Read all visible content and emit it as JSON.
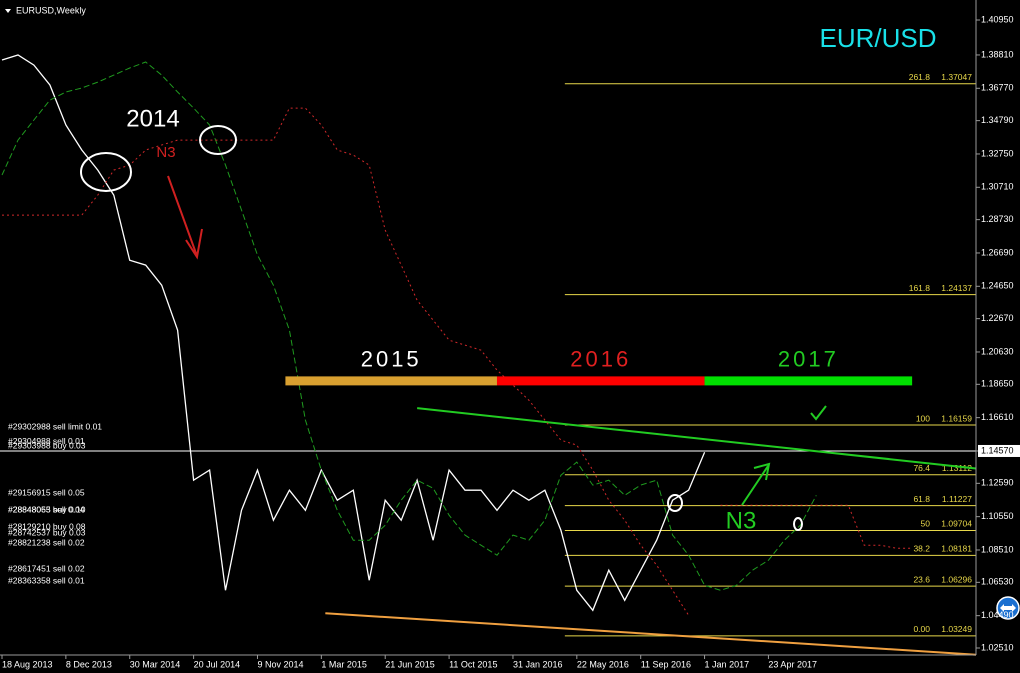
{
  "chart_data": {
    "type": "line",
    "header": "EURUSD,Weekly",
    "title": "EUR/USD",
    "annotations": [
      "2014",
      "N3",
      "N3"
    ],
    "x": [
      "18 Aug 2013",
      "15 Sep 2013",
      "13 Oct 2013",
      "10 Nov 2013",
      "8 Dec 2013",
      "5 Jan 2014",
      "2 Feb 2014",
      "2 Mar 2014",
      "30 Mar 2014",
      "27 Apr 2014",
      "25 May 2014",
      "22 Jun 2014",
      "20 Jul 2014",
      "17 Aug 2014",
      "14 Sep 2014",
      "12 Oct 2014",
      "9 Nov 2014",
      "7 Dec 2014",
      "4 Jan 2015",
      "1 Feb 2015",
      "1 Mar 2015",
      "29 Mar 2015",
      "26 Apr 2015",
      "24 May 2015",
      "21 Jun 2015",
      "19 Jul 2015",
      "16 Aug 2015",
      "13 Sep 2015",
      "11 Oct 2015",
      "8 Nov 2015",
      "6 Dec 2015",
      "3 Jan 2016",
      "31 Jan 2016",
      "28 Feb 2016",
      "27 Mar 2016",
      "24 Apr 2016",
      "22 May 2016",
      "19 Jun 2016",
      "17 Jul 2016",
      "14 Aug 2016",
      "11 Sep 2016",
      "9 Oct 2016",
      "6 Nov 2016",
      "4 Dec 2016",
      "1 Jan 2017",
      "29 Jan 2017",
      "26 Feb 2017",
      "26 Mar 2017",
      "23 Apr 2017",
      "21 May 2017",
      "18 Jun 2017",
      "16 Jul 2017",
      "13 Aug 2017",
      "10 Sep 2017",
      "8 Oct 2017",
      "5 Nov 2017",
      "3 Dec 2017",
      "31 Dec 2017"
    ],
    "series": [
      {
        "color": "#ffffff",
        "style": "solid",
        "values": [
          1.385,
          1.3881,
          1.3819,
          1.3697,
          1.3452,
          1.3299,
          1.3176,
          1.3023,
          1.2625,
          1.2595,
          1.2472,
          1.2197,
          1.1278,
          1.134,
          1.0604,
          1.1094,
          1.134,
          1.1033,
          1.1217,
          1.1094,
          1.134,
          1.1156,
          1.1217,
          1.0666,
          1.1156,
          1.1033,
          1.1278,
          1.0911,
          1.134,
          1.1217,
          1.1217,
          1.1094,
          1.1217,
          1.1156,
          1.1217,
          1.0972,
          1.0604,
          1.0482,
          1.0727,
          1.0543,
          1.0727,
          1.0911,
          1.1156,
          1.1217,
          1.1449,
          null,
          null,
          null,
          null,
          null,
          null,
          null,
          null,
          null,
          null,
          null,
          null,
          null
        ]
      },
      {
        "color": "#1f9a1f",
        "style": "dashed",
        "values": [
          1.3146,
          1.336,
          1.3483,
          1.3605,
          1.3654,
          1.3679,
          1.3715,
          1.3758,
          1.3801,
          1.3838,
          1.3758,
          1.3654,
          1.3556,
          1.3452,
          1.3207,
          1.2932,
          1.2656,
          1.2472,
          1.2197,
          1.1646,
          1.134,
          1.1094,
          1.0911,
          1.0911,
          1.1003,
          1.1156,
          1.1278,
          1.1229,
          1.1064,
          1.0942,
          1.088,
          1.0819,
          1.0942,
          1.0911,
          1.1033,
          1.1309,
          1.1389,
          1.1248,
          1.1278,
          1.1186,
          1.1248,
          1.1278,
          1.0942,
          1.0819,
          1.0635,
          1.0604,
          1.0635,
          1.0727,
          1.0788,
          1.0911,
          1.1003,
          1.1186,
          null,
          null,
          null,
          null,
          null,
          null
        ]
      },
      {
        "color": "#d0282a",
        "style": "dotted",
        "values": [
          1.2901,
          1.2901,
          1.2901,
          1.2901,
          1.2901,
          1.2901,
          1.3023,
          1.3176,
          1.3207,
          1.3299,
          1.333,
          1.336,
          1.336,
          1.336,
          1.336,
          1.336,
          1.336,
          1.336,
          1.3556,
          1.3556,
          1.3452,
          1.3299,
          1.3268,
          1.3207,
          1.2809,
          1.2595,
          1.238,
          1.2258,
          1.2135,
          1.2105,
          1.2074,
          1.1952,
          1.186,
          1.1768,
          1.1646,
          1.1523,
          1.1493,
          1.134,
          1.1156,
          1.1033,
          1.088,
          1.0758,
          1.0604,
          1.0451,
          null,
          1.1125,
          1.1125,
          1.1125,
          1.1125,
          1.1125,
          1.1125,
          1.1125,
          1.1125,
          1.1125,
          1.088,
          1.088,
          1.0862,
          1.0862
        ]
      }
    ],
    "xlim": [
      "18 Aug 2013",
      "22 Apr 2018"
    ],
    "xticks": [
      "18 Aug 2013",
      "8 Dec 2013",
      "30 Mar 2014",
      "20 Jul 2014",
      "9 Nov 2014",
      "1 Mar 2015",
      "21 Jun 2015",
      "11 Oct 2015",
      "31 Jan 2016",
      "22 May 2016",
      "11 Sep 2016",
      "1 Jan 2017",
      "23 Apr 2017"
    ],
    "ylim": [
      1.02082,
      1.42174
    ],
    "yticks": [
      {
        "value": 1.4095,
        "label": "1.40950"
      },
      {
        "value": 1.3881,
        "label": "1.38810"
      },
      {
        "value": 1.3677,
        "label": "1.36770"
      },
      {
        "value": 1.3479,
        "label": "1.34790"
      },
      {
        "value": 1.3275,
        "label": "1.32750"
      },
      {
        "value": 1.3071,
        "label": "1.30710"
      },
      {
        "value": 1.2873,
        "label": "1.28730"
      },
      {
        "value": 1.2669,
        "label": "1.26690"
      },
      {
        "value": 1.2465,
        "label": "1.24650"
      },
      {
        "value": 1.2267,
        "label": "1.22670"
      },
      {
        "value": 1.2063,
        "label": "1.20630"
      },
      {
        "value": 1.1865,
        "label": "1.18650"
      },
      {
        "value": 1.1661,
        "label": "1.16610"
      },
      {
        "value": 1.1457,
        "label": "1.14570"
      },
      {
        "value": 1.1259,
        "label": "1.12590"
      },
      {
        "value": 1.1055,
        "label": "1.10550"
      },
      {
        "value": 1.0851,
        "label": "1.08510"
      },
      {
        "value": 1.0653,
        "label": "1.06530"
      },
      {
        "value": 1.0449,
        "label": "1.04490"
      },
      {
        "value": 1.0251,
        "label": "1.02510"
      }
    ],
    "current_price": 1.1457,
    "fib_start": "1 May 2016",
    "fib_levels": [
      {
        "level": 261.8,
        "price": 1.37047
      },
      {
        "level": 161.8,
        "price": 1.24137
      },
      {
        "level": 100,
        "price": 1.16159
      },
      {
        "level": 76.4,
        "price": 1.13112
      },
      {
        "level": 61.8,
        "price": 1.11227
      },
      {
        "level": 50.0,
        "price": 1.09704
      },
      {
        "level": 38.2,
        "price": 1.08181
      },
      {
        "level": 23.6,
        "price": 1.06296
      },
      {
        "level": {
          "value": 0,
          "label": "0.00"
        },
        "price": 1.03249
      }
    ],
    "trend_lines": [
      {
        "color": "#22cc22",
        "x": [
          "16 Aug 2015",
          "22 Apr 2018"
        ],
        "y": [
          1.1719,
          1.135
        ]
      },
      {
        "color": "#f0a040",
        "x": [
          "8 Mar 2015",
          "22 Apr 2018"
        ],
        "y": [
          1.0464,
          1.021
        ]
      }
    ],
    "period_bars": [
      {
        "label": "2015",
        "color": "#d9a030",
        "text_color": "#ffffff",
        "start": "28 Dec 2014",
        "end": "3 Jan 2016",
        "y": 1.1886
      },
      {
        "label": "2016",
        "color": "#ff0000",
        "text_color": "#e02020",
        "start": "3 Jan 2016",
        "end": "1 Jan 2017",
        "y": 1.1886
      },
      {
        "label": "2017",
        "color": "#00e000",
        "text_color": "#22cc22",
        "start": "1 Jan 2017",
        "end": "31 Dec 2017",
        "y": 1.1886
      }
    ],
    "orders": [
      {
        "text": "#29302988 sell limit 0.01",
        "price": 1.1597
      },
      {
        "text": "#29304988 sell 0.01",
        "price": 1.1506
      },
      {
        "text": "#29303988 buy 0.03",
        "price": 1.148
      },
      {
        "text": "#29156915 sell 0.05",
        "price": 1.1193
      },
      {
        "text": "#28848065 sell 0.04",
        "price": 1.1089
      },
      {
        "text": "#28848053 buy 0.10",
        "price": 1.1089
      },
      {
        "text": "#28129210 buy 0.08",
        "price": 1.0985
      },
      {
        "text": "#28742537 buy 0.03",
        "price": 1.0948
      },
      {
        "text": "#28821238 sell 0.02",
        "price": 1.0886
      },
      {
        "text": "#28617451 sell 0.02",
        "price": 1.0727
      },
      {
        "text": "#28363358 sell 0.01",
        "price": 1.0654
      }
    ]
  }
}
